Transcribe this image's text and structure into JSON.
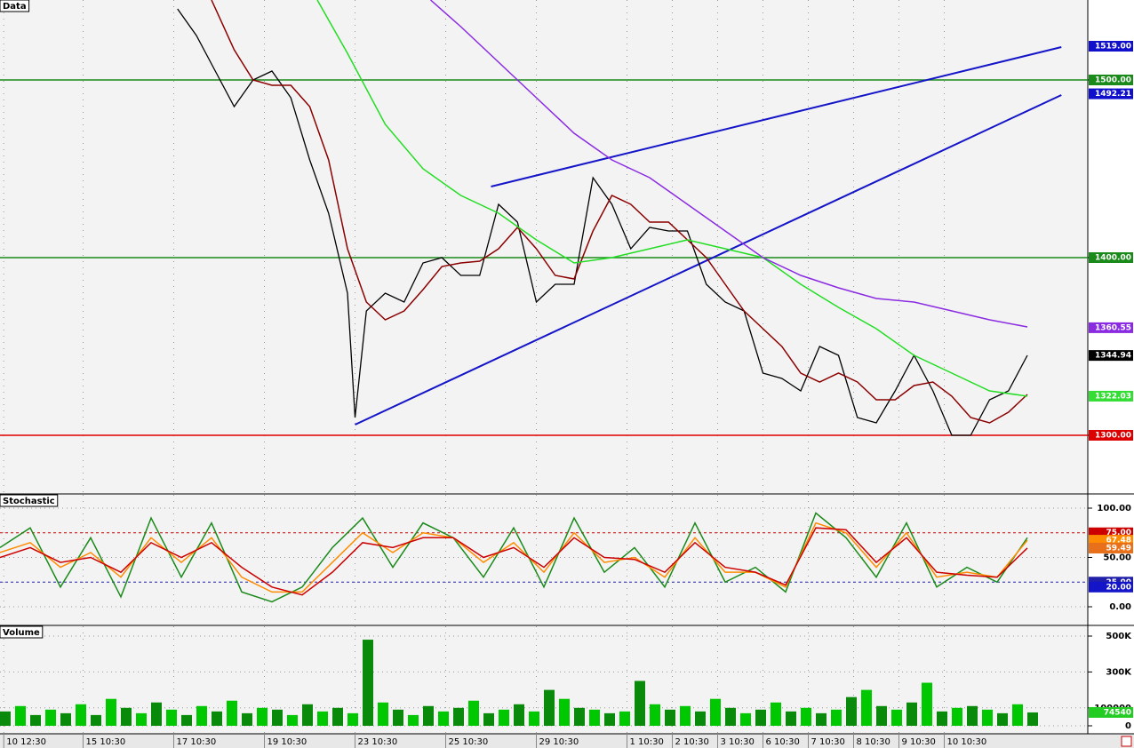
{
  "chart_data": [
    {
      "type": "line",
      "title": "Data",
      "ylim": [
        1267.5,
        1545
      ],
      "xlim": [
        0,
        288
      ],
      "xticks": [
        {
          "value": 1,
          "label": "10 12:30"
        },
        {
          "value": 22,
          "label": "15 10:30"
        },
        {
          "value": 46,
          "label": "17 10:30"
        },
        {
          "value": 70,
          "label": "19 10:30"
        },
        {
          "value": 94,
          "label": "23 10:30"
        },
        {
          "value": 118,
          "label": "25 10:30"
        },
        {
          "value": 142,
          "label": "29 10:30"
        },
        {
          "value": 166,
          "label": "1 10:30"
        },
        {
          "value": 178,
          "label": "2 10:30"
        },
        {
          "value": 190,
          "label": "3 10:30"
        },
        {
          "value": 202,
          "label": "6 10:30"
        },
        {
          "value": 214,
          "label": "7 10:30"
        },
        {
          "value": 226,
          "label": "8 10:30"
        },
        {
          "value": 238,
          "label": "9 10:30"
        },
        {
          "value": 250,
          "label": "10 10:30"
        }
      ],
      "yticks": [
        {
          "value": 1500,
          "label": "1500.00"
        },
        {
          "value": 1400,
          "label": "1400.00"
        },
        {
          "value": 1300,
          "label": "1300.00"
        }
      ],
      "levels": [
        {
          "value": 1500,
          "color": "#1a8a1a"
        },
        {
          "value": 1400,
          "color": "#1a8a1a"
        },
        {
          "value": 1300,
          "color": "#dd0000"
        }
      ],
      "markers": [
        {
          "value": 1519,
          "label": "1519.00",
          "color": "#1010cc"
        },
        {
          "value": 1492.21,
          "label": "1492.21",
          "color": "#1010cc"
        },
        {
          "value": 1360.55,
          "label": "1360.55",
          "color": "#8a2be2"
        },
        {
          "value": 1344.94,
          "label": "1344.94",
          "color": "#000000"
        },
        {
          "value": 1322.03,
          "label": "1322.03",
          "color": "#33dd33"
        }
      ],
      "trendlines": [
        {
          "color": "#1414c8",
          "x": [
            94,
            281
          ],
          "y": [
            1306,
            1491.5
          ]
        },
        {
          "color": "#1414c8",
          "x": [
            130,
            281
          ],
          "y": [
            1440,
            1518.5
          ]
        }
      ],
      "series": [
        {
          "color": "#000000",
          "x": [
            47,
            52,
            57,
            62,
            67,
            72,
            77,
            82,
            87,
            92,
            94,
            97,
            102,
            107,
            112,
            117,
            122,
            127,
            132,
            137,
            142,
            147,
            152,
            157,
            162,
            167,
            172,
            177,
            182,
            187,
            192,
            197,
            202,
            207,
            212,
            217,
            222,
            227,
            232,
            237,
            242,
            247,
            252,
            257,
            262,
            267,
            272
          ],
          "values": [
            1540,
            1525,
            1505,
            1485,
            1500,
            1505,
            1490,
            1455,
            1425,
            1380,
            1310,
            1370,
            1380,
            1375,
            1397,
            1400,
            1390,
            1390,
            1430,
            1420,
            1375,
            1385,
            1385,
            1445,
            1430,
            1405,
            1417,
            1415,
            1415,
            1385,
            1375,
            1370,
            1335,
            1332,
            1325,
            1350,
            1345,
            1310,
            1307,
            1325,
            1345,
            1325,
            1300,
            1300,
            1320,
            1325,
            1345
          ]
        },
        {
          "color": "#8b0000",
          "x": [
            56,
            62,
            67,
            72,
            77,
            82,
            87,
            92,
            97,
            102,
            107,
            112,
            117,
            122,
            127,
            132,
            137,
            142,
            147,
            152,
            157,
            162,
            167,
            172,
            177,
            182,
            187,
            192,
            197,
            202,
            207,
            212,
            217,
            222,
            227,
            232,
            237,
            242,
            247,
            252,
            257,
            262,
            267,
            272
          ],
          "values": [
            1545,
            1517,
            1500,
            1497,
            1497,
            1485,
            1455,
            1405,
            1375,
            1365,
            1370,
            1382,
            1395,
            1397,
            1398,
            1405,
            1417,
            1405,
            1390,
            1388,
            1415,
            1435,
            1430,
            1420,
            1420,
            1410,
            1400,
            1385,
            1370,
            1360,
            1350,
            1335,
            1330,
            1335,
            1330,
            1320,
            1320,
            1328,
            1330,
            1322,
            1310,
            1307,
            1313,
            1323
          ]
        },
        {
          "color": "#22dd22",
          "x": [
            84,
            92,
            102,
            112,
            122,
            132,
            142,
            152,
            162,
            172,
            182,
            192,
            202,
            212,
            222,
            232,
            242,
            252,
            262,
            272
          ],
          "values": [
            1545,
            1515,
            1475,
            1450,
            1435,
            1425,
            1410,
            1397,
            1400,
            1405,
            1410,
            1405,
            1400,
            1385,
            1372,
            1360,
            1345,
            1335,
            1325,
            1322
          ]
        },
        {
          "color": "#8a2be2",
          "x": [
            114,
            122,
            132,
            142,
            152,
            162,
            172,
            182,
            192,
            202,
            212,
            222,
            232,
            242,
            252,
            262,
            272
          ],
          "values": [
            1545,
            1530,
            1510,
            1490,
            1470,
            1455,
            1445,
            1430,
            1415,
            1400,
            1390,
            1383,
            1377,
            1375,
            1370,
            1365,
            1361
          ]
        }
      ]
    },
    {
      "type": "line",
      "title": "Stochastic",
      "ylim": [
        -18,
        113.5
      ],
      "yticks": [
        {
          "value": 100,
          "label": "100.00"
        },
        {
          "value": 50,
          "label": "50.00"
        },
        {
          "value": 0,
          "label": "0.00"
        }
      ],
      "levels": [
        {
          "value": 75,
          "label": "75.00",
          "color": "#cc0000"
        },
        {
          "value": 25,
          "label": "25.00",
          "color": "#2020aa"
        }
      ],
      "markers": [
        {
          "value": 67.48,
          "label": "67.48",
          "color": "#ff8c00"
        },
        {
          "value": 59.49,
          "label": "59.49",
          "color": "#e8701a"
        },
        {
          "value": 20,
          "label": "20.00",
          "color": "#1414c8"
        }
      ],
      "x": [
        0,
        8,
        16,
        24,
        32,
        40,
        48,
        56,
        64,
        72,
        80,
        88,
        96,
        104,
        112,
        120,
        128,
        136,
        144,
        152,
        160,
        168,
        176,
        184,
        192,
        200,
        208,
        216,
        224,
        232,
        240,
        248,
        256,
        264,
        272
      ],
      "series": [
        {
          "color": "#1a8a1a",
          "values": [
            60,
            80,
            20,
            70,
            10,
            90,
            30,
            85,
            15,
            5,
            20,
            60,
            90,
            40,
            85,
            70,
            30,
            80,
            20,
            90,
            35,
            60,
            20,
            85,
            25,
            40,
            15,
            95,
            70,
            30,
            85,
            20,
            40,
            25,
            70
          ]
        },
        {
          "color": "#ff8c00",
          "values": [
            55,
            65,
            40,
            55,
            30,
            70,
            45,
            70,
            30,
            15,
            15,
            45,
            75,
            55,
            75,
            70,
            45,
            65,
            35,
            75,
            45,
            50,
            30,
            70,
            35,
            35,
            20,
            85,
            75,
            40,
            75,
            30,
            35,
            30,
            67.48
          ]
        },
        {
          "color": "#cc0000",
          "values": [
            50,
            60,
            45,
            50,
            35,
            65,
            50,
            65,
            40,
            20,
            12,
            35,
            65,
            60,
            70,
            70,
            50,
            60,
            40,
            70,
            50,
            48,
            35,
            65,
            40,
            35,
            22,
            80,
            78,
            45,
            70,
            35,
            32,
            30,
            59.49
          ]
        }
      ]
    },
    {
      "type": "bar",
      "title": "Volume",
      "ylim": [
        -44500,
        554500
      ],
      "yticks": [
        {
          "value": 500000,
          "label": "500K"
        },
        {
          "value": 300000,
          "label": "300K"
        },
        {
          "value": 100000,
          "label": "100000"
        },
        0
      ],
      "markers": [
        {
          "value": 74540,
          "label": "74540",
          "color": "#22cc22"
        }
      ],
      "x": [
        0,
        4,
        8,
        12,
        16,
        20,
        24,
        28,
        32,
        36,
        40,
        44,
        48,
        52,
        56,
        60,
        64,
        68,
        72,
        76,
        80,
        84,
        88,
        92,
        96,
        100,
        104,
        108,
        112,
        116,
        120,
        124,
        128,
        132,
        136,
        140,
        144,
        148,
        152,
        156,
        160,
        164,
        168,
        172,
        176,
        180,
        184,
        188,
        192,
        196,
        200,
        204,
        208,
        212,
        216,
        220,
        224,
        228,
        232,
        236,
        240,
        244,
        248,
        252,
        256,
        260,
        264,
        268,
        272
      ],
      "series": [
        {
          "color": "#00c800",
          "values": [
            80000,
            110000,
            60000,
            90000,
            70000,
            120000,
            60000,
            150000,
            100000,
            70000,
            130000,
            90000,
            60000,
            110000,
            80000,
            140000,
            70000,
            100000,
            90000,
            60000,
            120000,
            80000,
            100000,
            70000,
            480000,
            130000,
            90000,
            60000,
            110000,
            80000,
            100000,
            140000,
            70000,
            90000,
            120000,
            80000,
            200000,
            150000,
            100000,
            90000,
            70000,
            80000,
            250000,
            120000,
            90000,
            110000,
            80000,
            150000,
            100000,
            70000,
            90000,
            130000,
            80000,
            100000,
            70000,
            90000,
            160000,
            200000,
            110000,
            90000,
            130000,
            240000,
            80000,
            100000,
            110000,
            90000,
            70000,
            120000,
            74540
          ]
        }
      ]
    }
  ]
}
